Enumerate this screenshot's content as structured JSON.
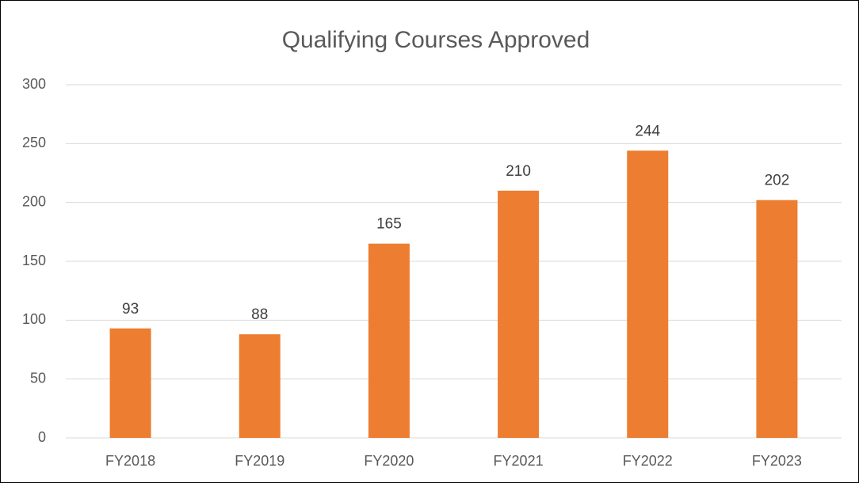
{
  "chart_data": {
    "type": "bar",
    "title": "Qualifying Courses Approved",
    "categories": [
      "FY2018",
      "FY2019",
      "FY2020",
      "FY2021",
      "FY2022",
      "FY2023"
    ],
    "values": [
      93,
      88,
      165,
      210,
      244,
      202
    ],
    "color": "#ed7d31",
    "ylim": [
      0,
      300
    ],
    "yticks": [
      0,
      50,
      100,
      150,
      200,
      250,
      300
    ],
    "grid": true
  }
}
